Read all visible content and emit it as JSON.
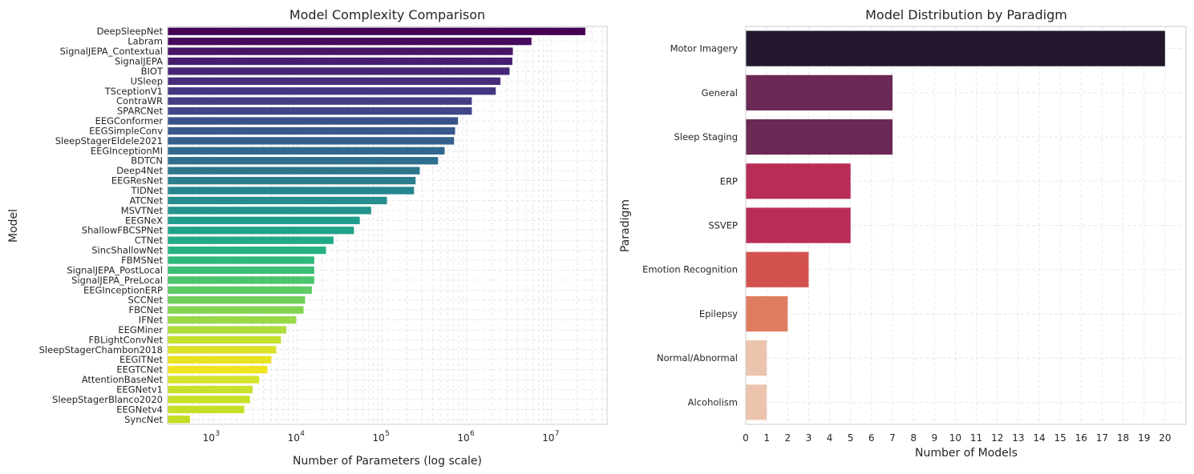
{
  "chart_data": [
    {
      "type": "bar",
      "orientation": "horizontal",
      "title": "Model Complexity Comparison",
      "xlabel": "Number of Parameters (log scale)",
      "ylabel": "Model",
      "xscale": "log",
      "xlim": [
        300,
        45000000
      ],
      "xticks": [
        1000,
        10000,
        100000,
        1000000,
        10000000
      ],
      "xtick_labels": [
        {
          "base": "10",
          "exp": "3"
        },
        {
          "base": "10",
          "exp": "4"
        },
        {
          "base": "10",
          "exp": "5"
        },
        {
          "base": "10",
          "exp": "6"
        },
        {
          "base": "10",
          "exp": "7"
        }
      ],
      "grid": true,
      "colormap": "viridis",
      "categories": [
        "DeepSleepNet",
        "Labram",
        "SignalJEPA_Contextual",
        "SignalJEPA",
        "BIOT",
        "USleep",
        "TSceptionV1",
        "ContraWR",
        "SPARCNet",
        "EEGConformer",
        "EEGSimpleConv",
        "SleepStagerEldele2021",
        "EEGInceptionMI",
        "BDTCN",
        "Deep4Net",
        "EEGResNet",
        "TIDNet",
        "ATCNet",
        "MSVTNet",
        "EEGNeX",
        "ShallowFBCSPNet",
        "CTNet",
        "SincShallowNet",
        "FBMSNet",
        "SignalJEPA_PostLocal",
        "SignalJEPA_PreLocal",
        "EEGInceptionERP",
        "SCCNet",
        "FBCNet",
        "IFNet",
        "EEGMiner",
        "FBLightConvNet",
        "SleepStagerChambon2018",
        "EEGITNet",
        "EEGTCNet",
        "AttentionBaseNet",
        "EEGNetv1",
        "SleepStagerBlanco2020",
        "EEGNetv4",
        "SyncNet"
      ],
      "values": [
        25000000,
        5800000,
        3500000,
        3450000,
        3200000,
        2500000,
        2200000,
        1150000,
        1150000,
        790000,
        730000,
        710000,
        550000,
        460000,
        280000,
        250000,
        240000,
        115000,
        75000,
        55000,
        47000,
        27000,
        22000,
        16000,
        16000,
        16000,
        15000,
        12500,
        12000,
        9800,
        7500,
        6500,
        5700,
        5000,
        4500,
        3600,
        3000,
        2800,
        2400,
        550
      ],
      "colors": [
        "#440154",
        "#460b5e",
        "#481467",
        "#481d6f",
        "#472575",
        "#462d7c",
        "#443781",
        "#423f85",
        "#3f4788",
        "#3b518b",
        "#38598c",
        "#35608d",
        "#32688e",
        "#2f6f8e",
        "#2c778e",
        "#2a7e8e",
        "#27858e",
        "#258d8d",
        "#22948d",
        "#209c8b",
        "#1fa388",
        "#20aa85",
        "#24b281",
        "#2db87c",
        "#3abf75",
        "#4ac56d",
        "#5bcb64",
        "#6ed05a",
        "#83d550",
        "#98d945",
        "#aedd3a",
        "#c5e02f",
        "#dae226",
        "#e7e31f",
        "#f0e41e",
        "#d6e22b",
        "#cbe02a",
        "#c9df28",
        "#c7de26",
        "#c5dc24"
      ]
    },
    {
      "type": "bar",
      "orientation": "horizontal",
      "title": "Model Distribution by Paradigm",
      "xlabel": "Number of Models",
      "ylabel": "Paradigm",
      "xlim": [
        0,
        21
      ],
      "xticks": [
        0,
        1,
        2,
        3,
        4,
        5,
        6,
        7,
        8,
        9,
        10,
        11,
        12,
        13,
        14,
        15,
        16,
        17,
        18,
        19,
        20
      ],
      "grid": true,
      "colormap": "rocket",
      "categories": [
        "Motor Imagery",
        "General",
        "Sleep Staging",
        "ERP",
        "SSVEP",
        "Emotion Recognition",
        "Epilepsy",
        "Normal/Abnormal",
        "Alcoholism"
      ],
      "values": [
        20,
        7,
        7,
        5,
        5,
        3,
        2,
        1,
        1
      ],
      "colors": [
        "#23172d",
        "#6b2955",
        "#6b2955",
        "#b82d56",
        "#b82d56",
        "#d3524f",
        "#e07d60",
        "#ecc4ad",
        "#ecc4ad"
      ]
    }
  ]
}
